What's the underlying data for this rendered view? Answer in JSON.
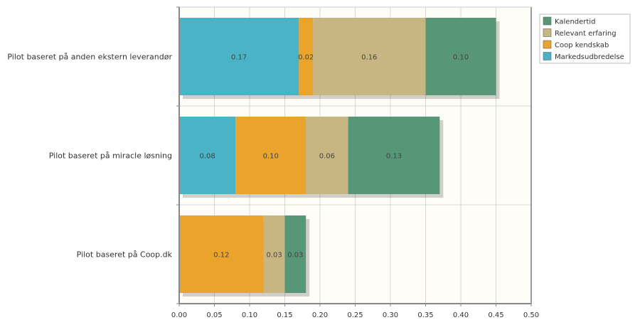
{
  "chart_data": {
    "type": "bar",
    "orientation": "horizontal",
    "stacked": true,
    "categories": [
      "Pilot baseret på anden ekstern leverandør",
      "Pilot baseret på miracle løsning",
      "Pilot baseret på Coop.dk"
    ],
    "series": [
      {
        "name": "Markedsudbredelse",
        "color": "#4ab3c6",
        "values": [
          0.17,
          0.08,
          0.0
        ],
        "labels": [
          "0.17",
          "0.08",
          ""
        ]
      },
      {
        "name": "Coop kendskab",
        "color": "#eba42b",
        "values": [
          0.02,
          0.1,
          0.12
        ],
        "labels": [
          "0.02",
          "0.10",
          "0.12"
        ]
      },
      {
        "name": "Relevant erfaring",
        "color": "#c7b582",
        "values": [
          0.16,
          0.06,
          0.03
        ],
        "labels": [
          "0.16",
          "0.06",
          "0.03"
        ]
      },
      {
        "name": "Kalendertid",
        "color": "#579677",
        "values": [
          0.1,
          0.13,
          0.03
        ],
        "labels": [
          "0.10",
          "0.13",
          "0.03"
        ]
      }
    ],
    "xlim": [
      0,
      0.5
    ],
    "xticks": [
      "0.00",
      "0.05",
      "0.10",
      "0.15",
      "0.20",
      "0.25",
      "0.30",
      "0.35",
      "0.40",
      "0.45",
      "0.50"
    ],
    "legend_order": [
      "Kalendertid",
      "Relevant erfaring",
      "Coop kendskab",
      "Markedsudbredelse"
    ],
    "legend_position": "top-right",
    "grid": true,
    "plot_background": "#fffdf7"
  }
}
